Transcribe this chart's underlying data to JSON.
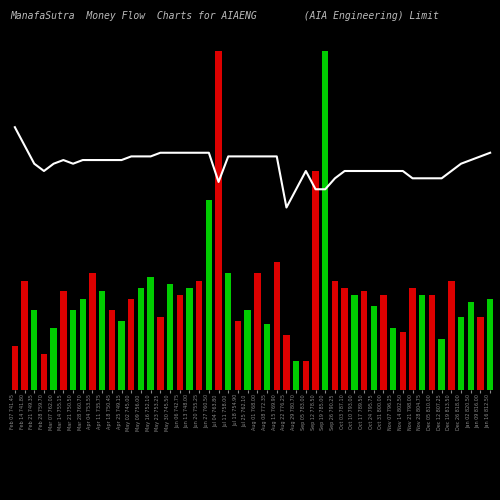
{
  "title": "ManafaSutra  Money Flow  Charts for AIAENG        (AIA Engineering) Limit",
  "bg_color": "#000000",
  "labels": [
    "Feb 07 741.45",
    "Feb 14 741.80",
    "Feb 21 749.35",
    "Feb 28 759.70",
    "Mar 07 762.00",
    "Mar 14 755.15",
    "Mar 21 750.50",
    "Mar 28 760.70",
    "Apr 04 753.55",
    "Apr 11 735.75",
    "Apr 18 750.45",
    "Apr 25 749.15",
    "May 02 745.00",
    "May 09 756.00",
    "May 16 752.10",
    "May 23 753.25",
    "May 30 745.50",
    "Jun 06 742.75",
    "Jun 13 748.00",
    "Jun 20 755.25",
    "Jun 27 760.50",
    "Jul 04 763.80",
    "Jul 11 758.00",
    "Jul 18 754.90",
    "Jul 25 762.10",
    "Aug 01 768.00",
    "Aug 08 772.35",
    "Aug 15 769.90",
    "Aug 22 776.25",
    "Aug 29 780.70",
    "Sep 05 783.00",
    "Sep 12 778.50",
    "Sep 19 785.00",
    "Sep 26 790.25",
    "Oct 03 787.10",
    "Oct 10 793.00",
    "Oct 17 789.50",
    "Oct 24 795.75",
    "Oct 31 800.00",
    "Nov 07 796.25",
    "Nov 14 802.50",
    "Nov 21 798.00",
    "Nov 28 804.75",
    "Dec 05 810.00",
    "Dec 12 807.25",
    "Dec 19 813.50",
    "Dec 26 818.00",
    "Jan 02 820.50",
    "Jan 09 816.00",
    "Jan 16 812.50"
  ],
  "colors": [
    "red",
    "red",
    "green",
    "red",
    "green",
    "red",
    "green",
    "green",
    "red",
    "green",
    "red",
    "green",
    "red",
    "green",
    "green",
    "red",
    "green",
    "red",
    "green",
    "red",
    "green",
    "red",
    "green",
    "red",
    "green",
    "red",
    "green",
    "red",
    "red",
    "green",
    "red",
    "red",
    "green",
    "red",
    "red",
    "green",
    "red",
    "green",
    "red",
    "green",
    "red",
    "red",
    "green",
    "red",
    "green",
    "red",
    "green",
    "green",
    "red",
    "green"
  ],
  "bar_heights": [
    0.12,
    0.3,
    0.22,
    0.1,
    0.17,
    0.27,
    0.22,
    0.25,
    0.32,
    0.27,
    0.22,
    0.19,
    0.25,
    0.28,
    0.31,
    0.2,
    0.29,
    0.26,
    0.28,
    0.3,
    0.52,
    0.93,
    0.32,
    0.19,
    0.22,
    0.32,
    0.18,
    0.35,
    0.15,
    0.08,
    0.08,
    0.6,
    0.93,
    0.3,
    0.28,
    0.26,
    0.27,
    0.23,
    0.26,
    0.17,
    0.16,
    0.28,
    0.26,
    0.26,
    0.14,
    0.3,
    0.2,
    0.24,
    0.2,
    0.25
  ],
  "line_y": [
    0.72,
    0.67,
    0.62,
    0.6,
    0.62,
    0.63,
    0.62,
    0.63,
    0.63,
    0.63,
    0.63,
    0.63,
    0.64,
    0.64,
    0.64,
    0.65,
    0.65,
    0.65,
    0.65,
    0.65,
    0.65,
    0.57,
    0.64,
    0.64,
    0.64,
    0.64,
    0.64,
    0.64,
    0.5,
    0.55,
    0.6,
    0.55,
    0.55,
    0.58,
    0.6,
    0.6,
    0.6,
    0.6,
    0.6,
    0.6,
    0.6,
    0.58,
    0.58,
    0.58,
    0.58,
    0.6,
    0.62,
    0.63,
    0.64,
    0.65
  ],
  "title_color": "#bbbbbb",
  "title_fontsize": 7,
  "bar_width": 0.65,
  "ylim": [
    0.0,
    1.0
  ],
  "line_color": "#ffffff",
  "line_width": 1.5,
  "text_color": "#888888",
  "label_fontsize": 3.5,
  "red_color": "#dd0000",
  "green_color": "#00cc00"
}
